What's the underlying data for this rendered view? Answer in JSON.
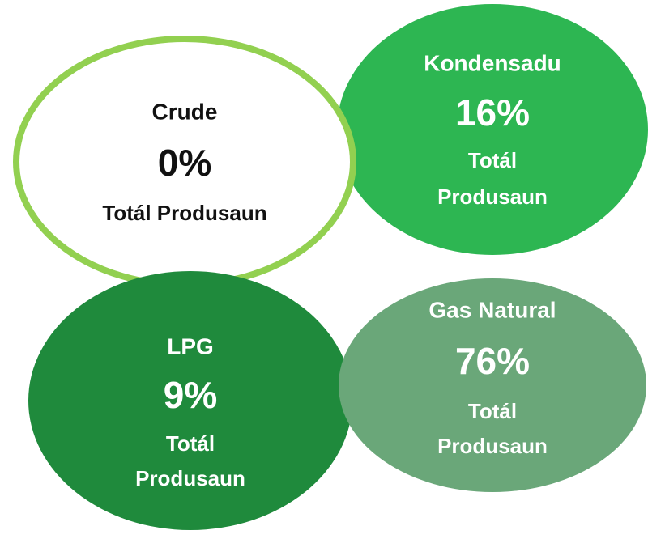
{
  "items": [
    {
      "name": "Kondensadu",
      "value": "16%",
      "caption": [
        "Totál",
        "Produsaun"
      ],
      "fill": "#2db652",
      "stroke": "none",
      "text_color": "#ffffff"
    },
    {
      "name": "Crude",
      "value": "0%",
      "caption": [
        "Totál Produsaun"
      ],
      "fill": "#ffffff",
      "stroke": "#92d050",
      "text_color": "#111111"
    },
    {
      "name": "LPG",
      "value": "9%",
      "caption": [
        "Totál",
        "Produsaun"
      ],
      "fill": "#1f8a3c",
      "stroke": "none",
      "text_color": "#ffffff"
    },
    {
      "name": "Gas Natural",
      "value": "76%",
      "caption": [
        "Totál",
        "Produsaun"
      ],
      "fill": "#6aa779",
      "stroke": "none",
      "text_color": "#ffffff"
    }
  ]
}
